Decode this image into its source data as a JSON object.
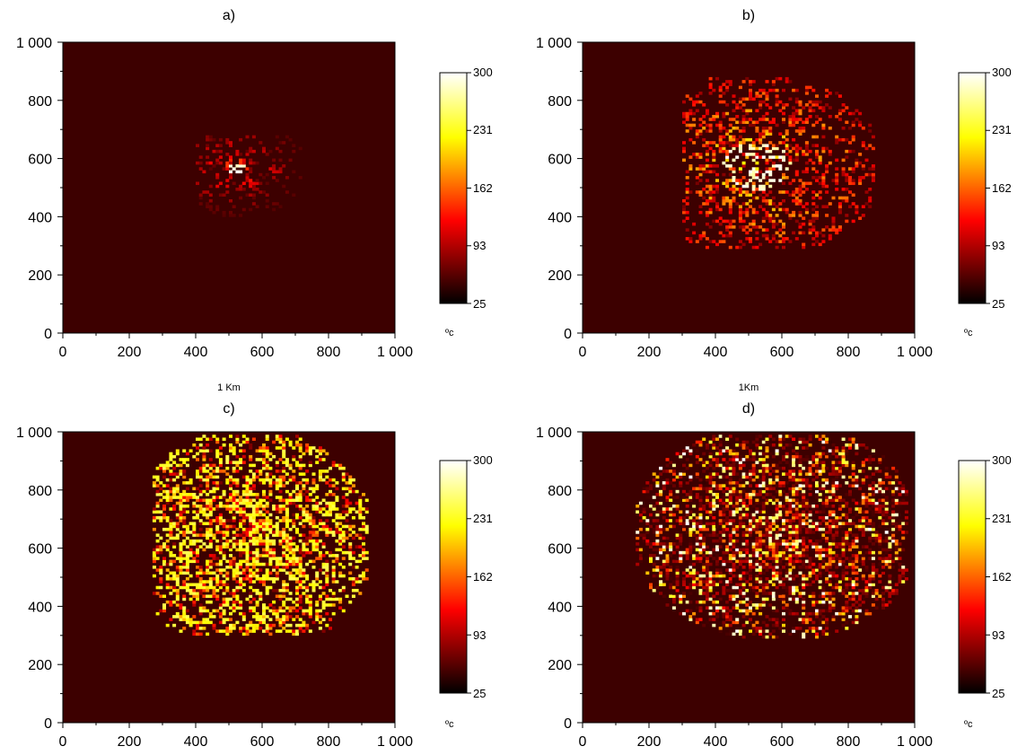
{
  "figure": {
    "cell_size_m": 10,
    "colormap": "hot",
    "colorbar": {
      "min": 25,
      "max": 300,
      "ticks": [
        "300",
        "231",
        "162",
        "93",
        "25"
      ],
      "unit": "ºc"
    },
    "colors": {
      "background": "#3d0000",
      "low": "#000000",
      "mid_red": "#ff0000",
      "yellow": "#ffff00",
      "high": "#ffffff"
    }
  },
  "chart_data": [
    {
      "type": "heatmap",
      "title": "a)",
      "xlabel": "1 Km",
      "xlim": [
        0,
        1000
      ],
      "ylim": [
        0,
        1000
      ],
      "xticks": [
        "0",
        "200",
        "400",
        "600",
        "800",
        "1 000"
      ],
      "yticks": [
        "0",
        "200",
        "400",
        "600",
        "800",
        "1 000"
      ],
      "background_value": 40,
      "fire": {
        "center": [
          520,
          560
        ],
        "extent_x": [
          400,
          720
        ],
        "extent_y": [
          400,
          680
        ],
        "density": 0.35,
        "peak_value": 300,
        "typical_value": 110
      }
    },
    {
      "type": "heatmap",
      "title": "b)",
      "xlabel": "1Km",
      "xlim": [
        0,
        1000
      ],
      "ylim": [
        0,
        1000
      ],
      "xticks": [
        "0",
        "200",
        "400",
        "600",
        "800",
        "1 000"
      ],
      "yticks": [
        "0",
        "200",
        "400",
        "600",
        "800",
        "1 000"
      ],
      "background_value": 40,
      "fire": {
        "center": [
          520,
          570
        ],
        "extent_x": [
          300,
          880
        ],
        "extent_y": [
          290,
          880
        ],
        "density": 0.55,
        "peak_value": 300,
        "typical_value": 140
      }
    },
    {
      "type": "heatmap",
      "title": "c)",
      "xlabel": "",
      "xlim": [
        0,
        1000
      ],
      "ylim": [
        0,
        1000
      ],
      "xticks": [
        "0",
        "200",
        "400",
        "600",
        "800",
        "1 000"
      ],
      "yticks": [
        "0",
        "200",
        "400",
        "600",
        "800",
        "1 000"
      ],
      "background_value": 40,
      "fire": {
        "center": [
          560,
          620
        ],
        "extent_x": [
          270,
          920
        ],
        "extent_y": [
          300,
          990
        ],
        "density": 0.8,
        "peak_value": 250,
        "typical_value": 230
      }
    },
    {
      "type": "heatmap",
      "title": "d)",
      "xlabel": "",
      "xlim": [
        0,
        1000
      ],
      "ylim": [
        0,
        1000
      ],
      "xticks": [
        "0",
        "200",
        "400",
        "600",
        "800",
        "1 000"
      ],
      "yticks": [
        "0",
        "200",
        "400",
        "600",
        "800",
        "1 000"
      ],
      "background_value": 40,
      "fire": {
        "center": [
          580,
          650
        ],
        "extent_x": [
          160,
          980
        ],
        "extent_y": [
          290,
          990
        ],
        "density": 0.9,
        "peak_value": 300,
        "typical_value": 70
      }
    }
  ]
}
